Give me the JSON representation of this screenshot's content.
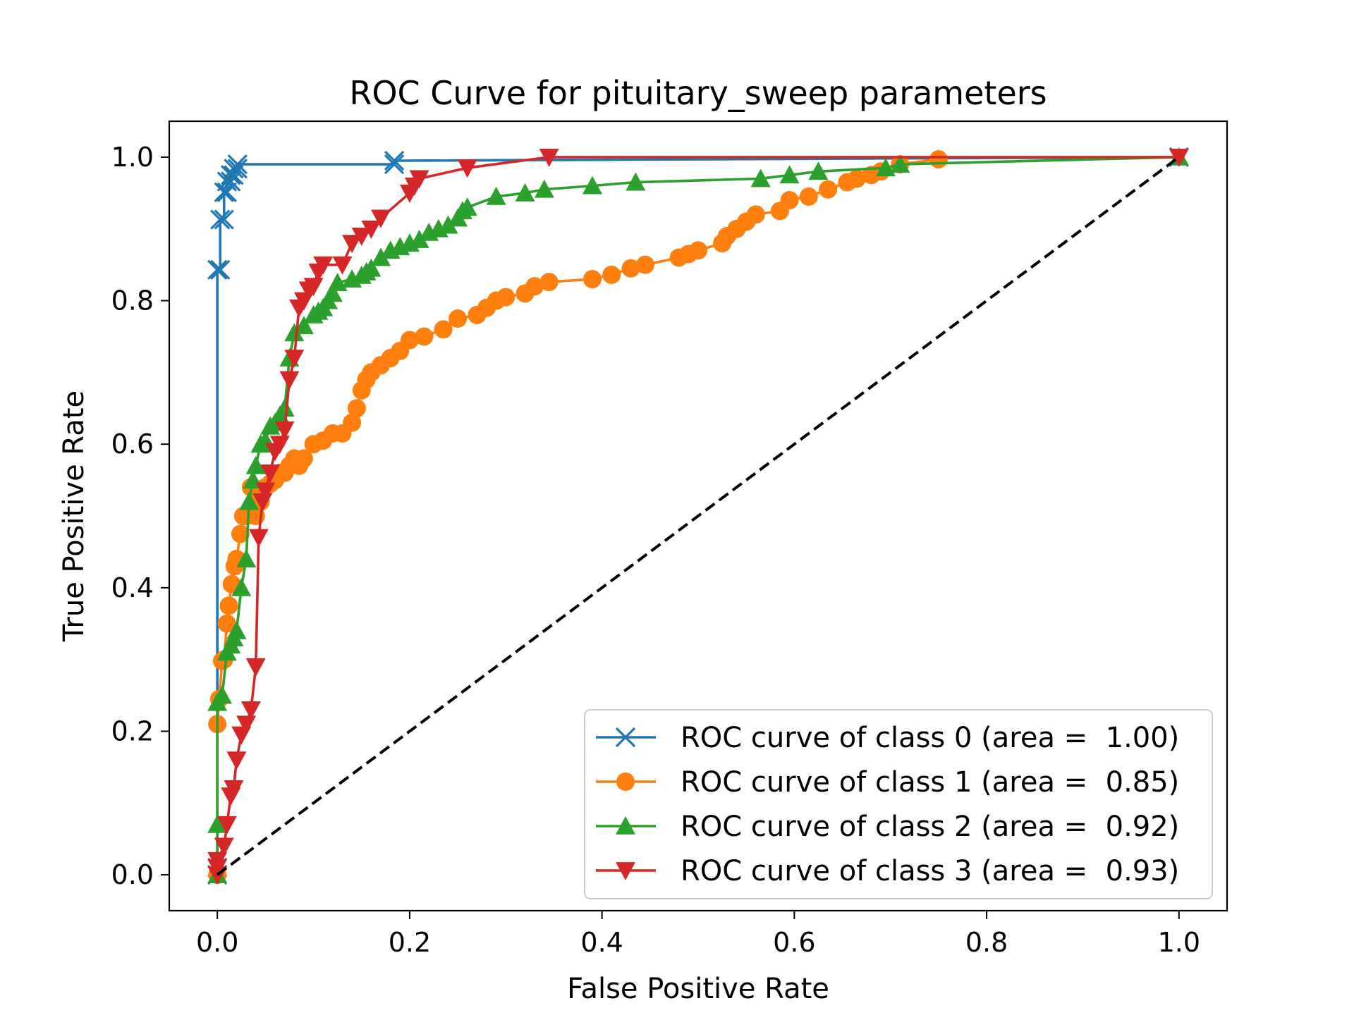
{
  "chart_data": {
    "type": "line",
    "title": "ROC Curve for pituitary_sweep parameters",
    "xlabel": "False Positive Rate",
    "ylabel": "True Positive Rate",
    "xlim": [
      -0.05,
      1.05
    ],
    "ylim": [
      -0.05,
      1.05
    ],
    "xticks": [
      "0.0",
      "0.2",
      "0.4",
      "0.6",
      "0.8",
      "1.0"
    ],
    "yticks": [
      "0.0",
      "0.2",
      "0.4",
      "0.6",
      "0.8",
      "1.0"
    ],
    "grid": false,
    "legend_position": "lower-right",
    "series": [
      {
        "name": "ROC curve of class 0 (area =  1.00)",
        "color": "#1f77b4",
        "marker": "x",
        "x": [
          0.0,
          0.0,
          0.0,
          0.003,
          0.003,
          0.007,
          0.007,
          0.01,
          0.01,
          0.014,
          0.014,
          0.017,
          0.017,
          0.021,
          0.021,
          0.184,
          0.184,
          1.0
        ],
        "y": [
          0.0,
          0.01,
          0.843,
          0.843,
          0.913,
          0.913,
          0.951,
          0.951,
          0.966,
          0.966,
          0.975,
          0.975,
          0.984,
          0.984,
          0.99,
          0.99,
          0.995,
          1.0
        ]
      },
      {
        "name": "ROC curve of class 1 (area =  0.85)",
        "color": "#ff7f0e",
        "marker": "o",
        "x": [
          0.0,
          0.0,
          0.002,
          0.005,
          0.007,
          0.01,
          0.012,
          0.015,
          0.018,
          0.02,
          0.024,
          0.027,
          0.03,
          0.035,
          0.04,
          0.045,
          0.05,
          0.055,
          0.06,
          0.065,
          0.07,
          0.075,
          0.08,
          0.085,
          0.09,
          0.1,
          0.11,
          0.12,
          0.13,
          0.14,
          0.145,
          0.15,
          0.155,
          0.16,
          0.17,
          0.18,
          0.19,
          0.2,
          0.215,
          0.235,
          0.25,
          0.27,
          0.28,
          0.29,
          0.3,
          0.32,
          0.33,
          0.345,
          0.39,
          0.41,
          0.43,
          0.445,
          0.48,
          0.49,
          0.5,
          0.525,
          0.53,
          0.54,
          0.55,
          0.56,
          0.585,
          0.595,
          0.615,
          0.635,
          0.655,
          0.665,
          0.68,
          0.69,
          0.71,
          0.75
        ],
        "y": [
          0.0,
          0.21,
          0.245,
          0.298,
          0.3,
          0.35,
          0.375,
          0.405,
          0.43,
          0.44,
          0.475,
          0.5,
          0.5,
          0.54,
          0.5,
          0.52,
          0.54,
          0.545,
          0.55,
          0.56,
          0.56,
          0.57,
          0.58,
          0.57,
          0.58,
          0.6,
          0.605,
          0.615,
          0.615,
          0.63,
          0.65,
          0.675,
          0.69,
          0.7,
          0.71,
          0.72,
          0.73,
          0.745,
          0.75,
          0.76,
          0.775,
          0.78,
          0.79,
          0.8,
          0.805,
          0.81,
          0.82,
          0.826,
          0.83,
          0.836,
          0.845,
          0.85,
          0.86,
          0.865,
          0.87,
          0.88,
          0.89,
          0.9,
          0.91,
          0.92,
          0.925,
          0.94,
          0.945,
          0.955,
          0.965,
          0.97,
          0.975,
          0.98,
          0.99,
          0.997
        ]
      },
      {
        "name": "ROC curve of class 2 (area =  0.92)",
        "color": "#2ca02c",
        "marker": "^",
        "x": [
          0.0,
          0.0,
          0.0,
          0.005,
          0.01,
          0.014,
          0.017,
          0.02,
          0.025,
          0.03,
          0.033,
          0.037,
          0.04,
          0.045,
          0.05,
          0.055,
          0.06,
          0.065,
          0.07,
          0.075,
          0.08,
          0.09,
          0.1,
          0.105,
          0.11,
          0.115,
          0.12,
          0.125,
          0.14,
          0.15,
          0.155,
          0.16,
          0.17,
          0.18,
          0.19,
          0.2,
          0.21,
          0.22,
          0.23,
          0.24,
          0.25,
          0.255,
          0.26,
          0.29,
          0.32,
          0.34,
          0.39,
          0.435,
          0.565,
          0.595,
          0.625,
          0.695,
          0.71,
          1.0
        ],
        "y": [
          0.0,
          0.07,
          0.24,
          0.25,
          0.31,
          0.32,
          0.33,
          0.34,
          0.4,
          0.44,
          0.52,
          0.55,
          0.57,
          0.6,
          0.605,
          0.625,
          0.63,
          0.64,
          0.65,
          0.72,
          0.755,
          0.765,
          0.78,
          0.785,
          0.79,
          0.8,
          0.81,
          0.825,
          0.83,
          0.835,
          0.84,
          0.845,
          0.86,
          0.87,
          0.875,
          0.88,
          0.885,
          0.895,
          0.9,
          0.905,
          0.915,
          0.925,
          0.93,
          0.945,
          0.95,
          0.955,
          0.96,
          0.965,
          0.97,
          0.975,
          0.98,
          0.985,
          0.99,
          1.0
        ]
      },
      {
        "name": "ROC curve of class 3 (area =  0.93)",
        "color": "#d62728",
        "marker": "v",
        "x": [
          0.0,
          0.0,
          0.0,
          0.007,
          0.01,
          0.014,
          0.017,
          0.02,
          0.025,
          0.03,
          0.035,
          0.04,
          0.043,
          0.047,
          0.05,
          0.055,
          0.06,
          0.065,
          0.07,
          0.075,
          0.08,
          0.085,
          0.09,
          0.095,
          0.1,
          0.105,
          0.11,
          0.13,
          0.14,
          0.15,
          0.16,
          0.17,
          0.2,
          0.205,
          0.21,
          0.26,
          0.345,
          1.0
        ],
        "y": [
          0.0,
          0.01,
          0.02,
          0.04,
          0.07,
          0.11,
          0.12,
          0.16,
          0.195,
          0.21,
          0.23,
          0.29,
          0.47,
          0.52,
          0.535,
          0.56,
          0.59,
          0.6,
          0.62,
          0.69,
          0.72,
          0.79,
          0.8,
          0.815,
          0.82,
          0.84,
          0.85,
          0.85,
          0.88,
          0.89,
          0.9,
          0.915,
          0.95,
          0.96,
          0.97,
          0.985,
          1.0,
          1.0
        ]
      }
    ],
    "reference_line": {
      "x": [
        0,
        1
      ],
      "y": [
        0,
        1
      ],
      "color": "#000000",
      "style": "dashed"
    }
  }
}
